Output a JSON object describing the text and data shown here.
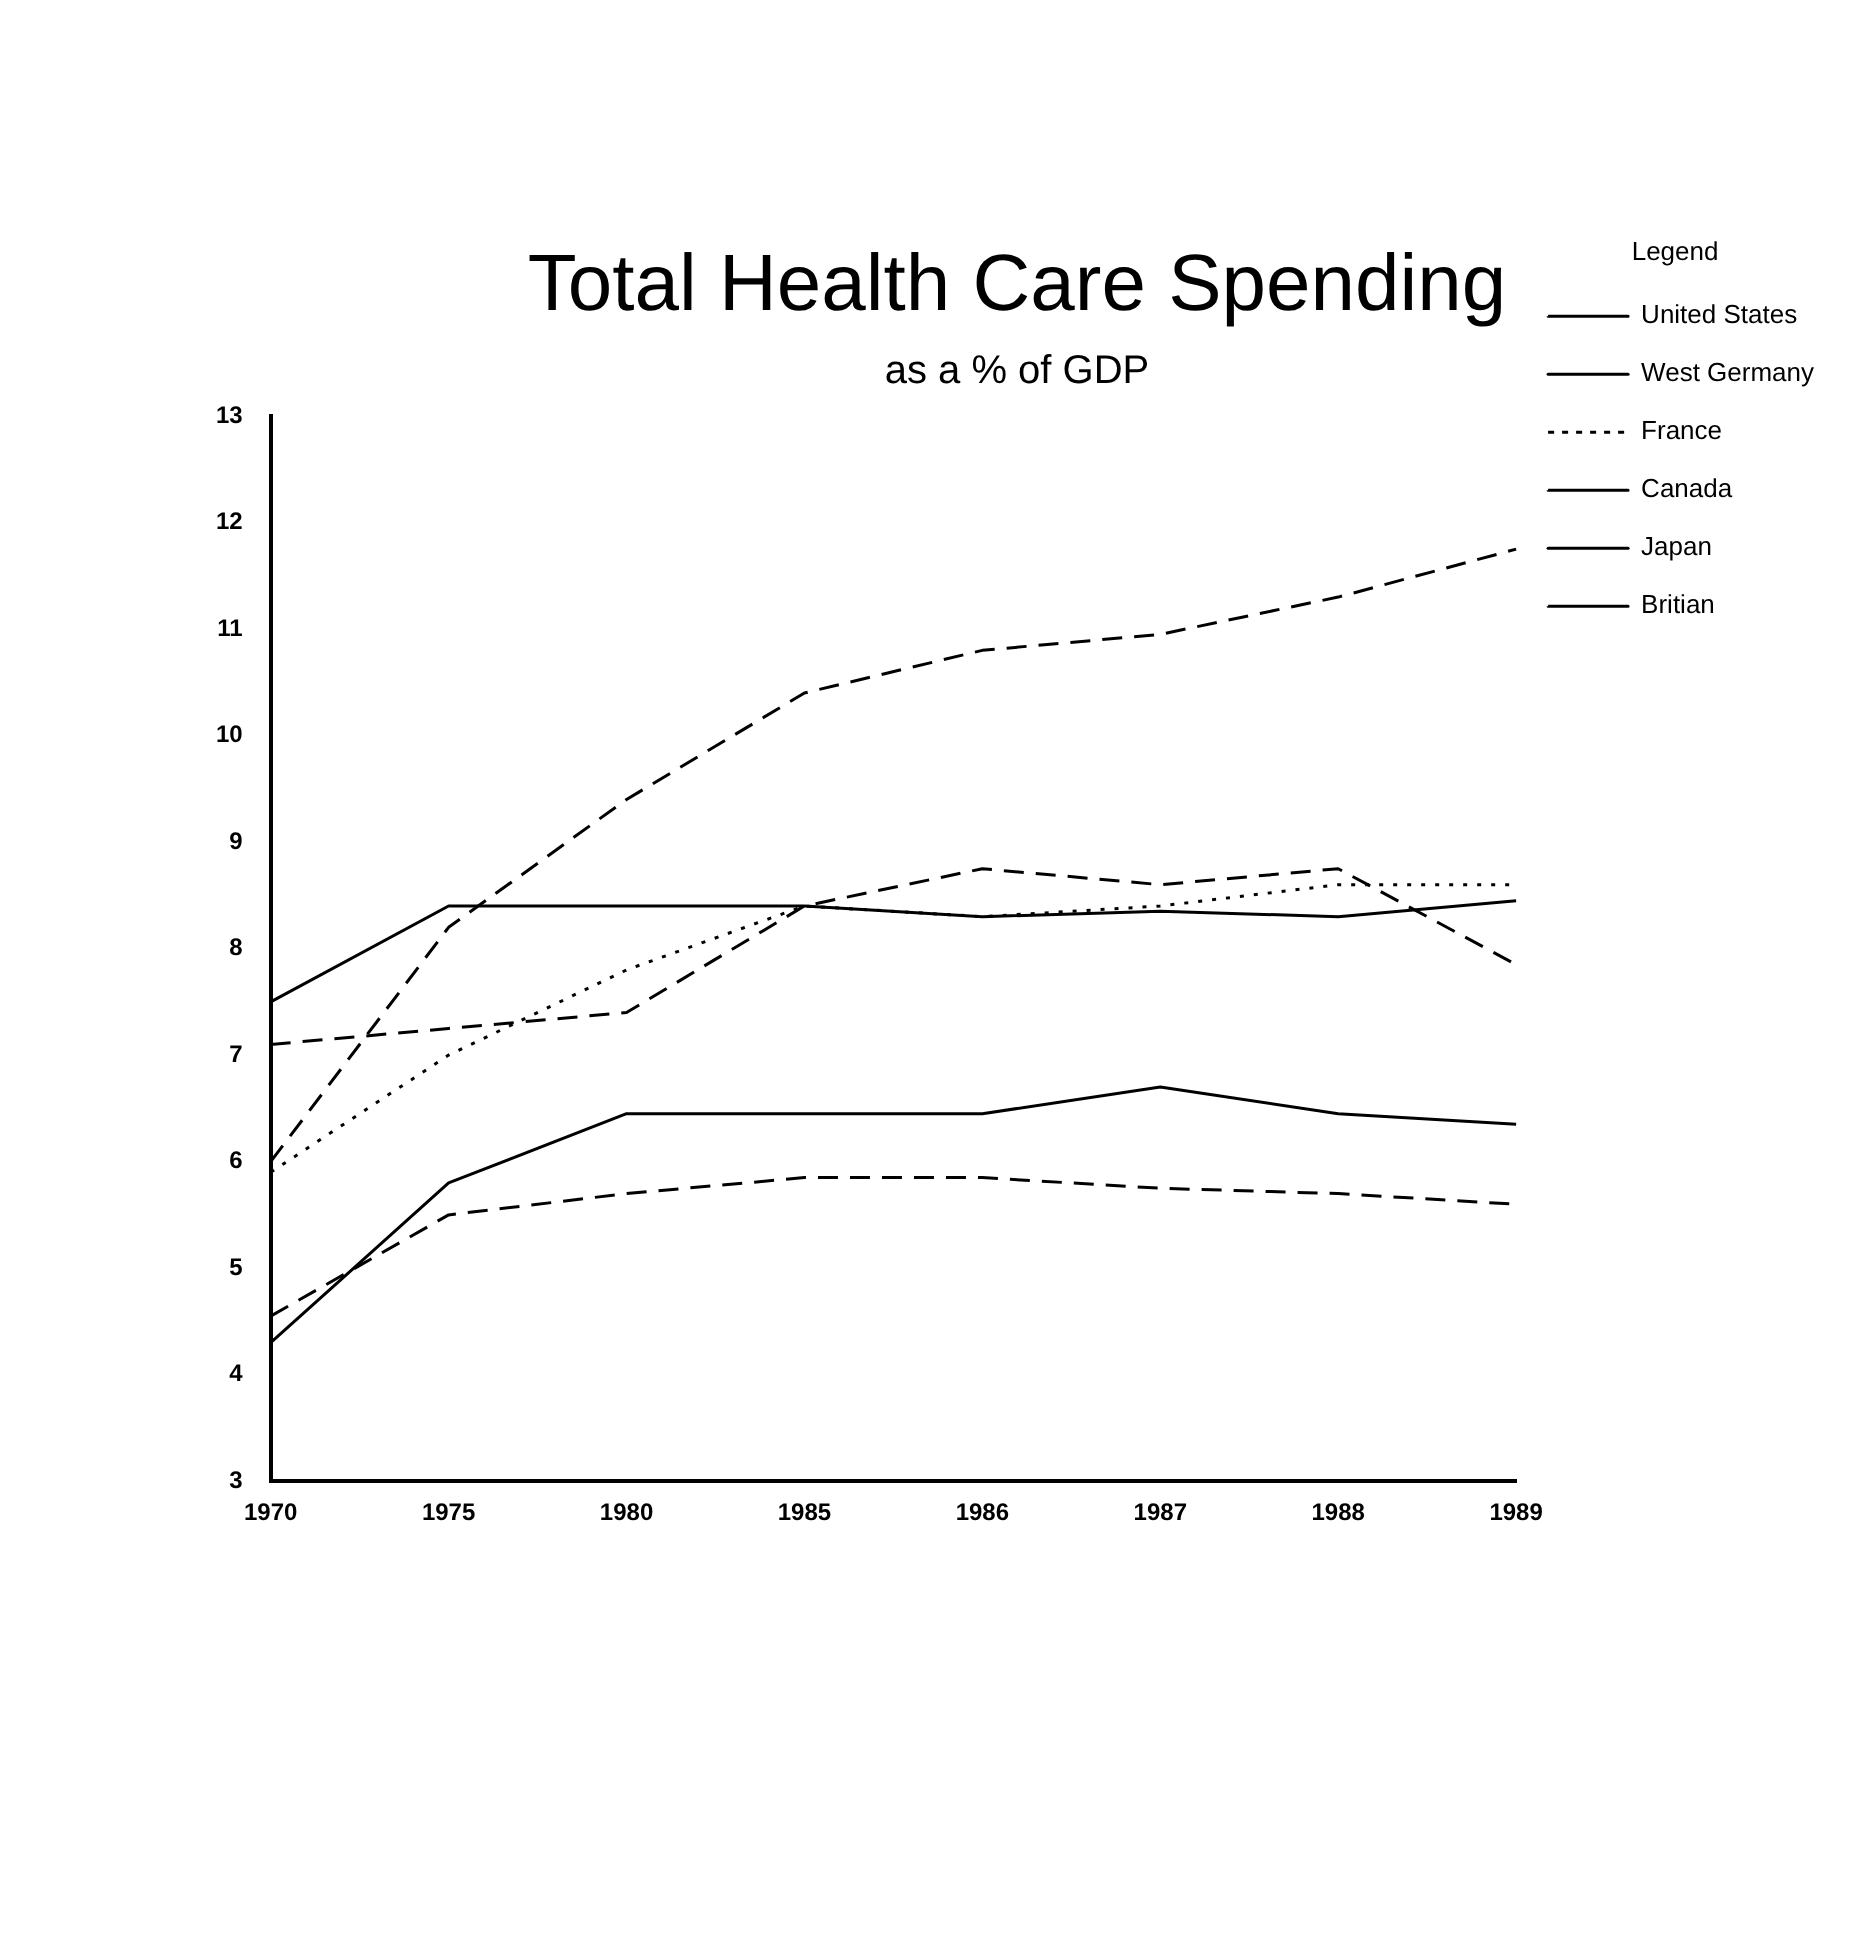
{
  "chart_data": {
    "type": "line",
    "title": "Total Health Care Spending",
    "subtitle": "as a % of GDP",
    "legend_title": "Legend",
    "categories": [
      "1970",
      "1975",
      "1980",
      "1985",
      "1986",
      "1987",
      "1988",
      "1989"
    ],
    "series": [
      {
        "name": "United States",
        "color": "#000000",
        "line_style": "dashed",
        "values": [
          6.0,
          8.2,
          9.4,
          10.4,
          10.8,
          10.95,
          11.3,
          11.75
        ]
      },
      {
        "name": "West Germany",
        "color": "#000000",
        "line_style": "solid",
        "values": [
          7.5,
          8.4,
          8.4,
          8.4,
          8.3,
          8.35,
          8.3,
          8.45
        ]
      },
      {
        "name": "France",
        "color": "#000000",
        "line_style": "dotted",
        "values": [
          5.9,
          7.0,
          7.8,
          8.4,
          8.3,
          8.4,
          8.6,
          8.6
        ]
      },
      {
        "name": "Canada",
        "color": "#000000",
        "line_style": "dashed",
        "values": [
          7.1,
          7.25,
          7.4,
          8.4,
          8.75,
          8.6,
          8.75,
          7.85
        ]
      },
      {
        "name": "Japan",
        "color": "#000000",
        "line_style": "solid",
        "values": [
          4.3,
          5.8,
          6.45,
          6.45,
          6.45,
          6.7,
          6.45,
          6.35
        ]
      },
      {
        "name": "Britian",
        "color": "#000000",
        "line_style": "dashed",
        "values": [
          4.55,
          5.5,
          5.7,
          5.85,
          5.85,
          5.75,
          5.7,
          5.6
        ]
      }
    ],
    "ylim": [
      3,
      13
    ],
    "yticks": [
      3,
      4,
      5,
      6,
      7,
      8,
      9,
      10,
      11,
      12,
      13
    ],
    "grid": false,
    "legend": "right",
    "marker": "none"
  }
}
